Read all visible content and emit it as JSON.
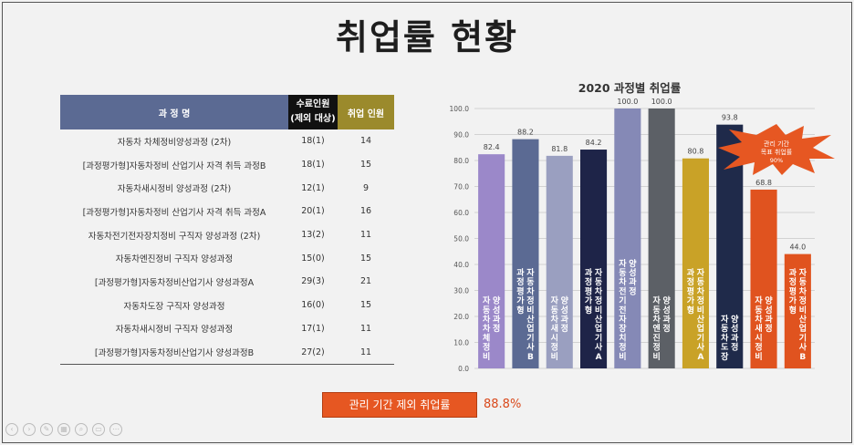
{
  "slide": {
    "title": "취업률 현황"
  },
  "table": {
    "headers": {
      "course": "과 정 명",
      "completed": "수료인원",
      "completed_note": "(제외 대상)",
      "employed": "취업 인원"
    },
    "rows": [
      {
        "course": "자동차 차체정비양성과정 (2차)",
        "completed": "18(1)",
        "employed": "14"
      },
      {
        "course": "[과정평가형]자동차정비 산업기사 자격 취득 과정B",
        "completed": "18(1)",
        "employed": "15"
      },
      {
        "course": "자동차새시정비 양성과정 (2차)",
        "completed": "12(1)",
        "employed": "9"
      },
      {
        "course": "[과정평가형]자동차정비 산업기사 자격 취득 과정A",
        "completed": "20(1)",
        "employed": "16"
      },
      {
        "course": "자동차전기전자장치정비 구직자 양성과정 (2차)",
        "completed": "13(2)",
        "employed": "11"
      },
      {
        "course": "자동차엔진정비 구직자 양성과정",
        "completed": "15(0)",
        "employed": "15"
      },
      {
        "course": "[과정평가형]자동차정비산업기사 양성과정A",
        "completed": "29(3)",
        "employed": "21"
      },
      {
        "course": "자동차도장 구직자 양성과정",
        "completed": "16(0)",
        "employed": "15"
      },
      {
        "course": "자동차새시정비 구직자 양성과정",
        "completed": "17(1)",
        "employed": "11"
      },
      {
        "course": "[과정평가형]자동차정비산업기사 양성과정B",
        "completed": "27(2)",
        "employed": "11"
      }
    ]
  },
  "chart_data": {
    "type": "bar",
    "title": "2020 과정별 취업률",
    "ylim": [
      0,
      100
    ],
    "yticks": [
      "0.0",
      "10.0",
      "20.0",
      "30.0",
      "40.0",
      "50.0",
      "60.0",
      "70.0",
      "80.0",
      "90.0",
      "100.0"
    ],
    "grid": true,
    "categories": [
      "자동차차체정비 양성과정",
      "과정평가형 자동차정비산업기사B",
      "자동차새시정비 양성과정",
      "과정평가형 자동차정비산업기사A",
      "자동차전기전자장치정비 양성과정",
      "자동차엔진정비 양성과정",
      "과정평가형 자동차정비산업기사A",
      "자동차도장 양성과정",
      "자동차새시정비 양성과정",
      "과정평가형 자동차정비산업기사B"
    ],
    "values": [
      82.4,
      88.2,
      81.8,
      84.2,
      100.0,
      100.0,
      80.8,
      93.8,
      68.8,
      44.0
    ],
    "value_labels": [
      "82.4",
      "88.2",
      "81.8",
      "84.2",
      "100.0",
      "100.0",
      "80.8",
      "93.8",
      "68.8",
      "44.0"
    ],
    "bar_colors": [
      "#9b88c9",
      "#5b6a93",
      "#9a9fc0",
      "#1e2448",
      "#8589b6",
      "#5c6066",
      "#c9a227",
      "#1f2a4a",
      "#e0531f",
      "#e0531f"
    ],
    "callout": {
      "lines": [
        "관리 기간",
        "목표 취업률",
        "90%"
      ],
      "color": "#e65722"
    }
  },
  "summary": {
    "label": "관리 기간 제외 취업률",
    "value": "88.8%"
  },
  "toolbar": {
    "icons": [
      "prev-icon",
      "next-icon",
      "pen-icon",
      "grid-icon",
      "zoom-icon",
      "subtitle-icon",
      "more-icon"
    ]
  }
}
